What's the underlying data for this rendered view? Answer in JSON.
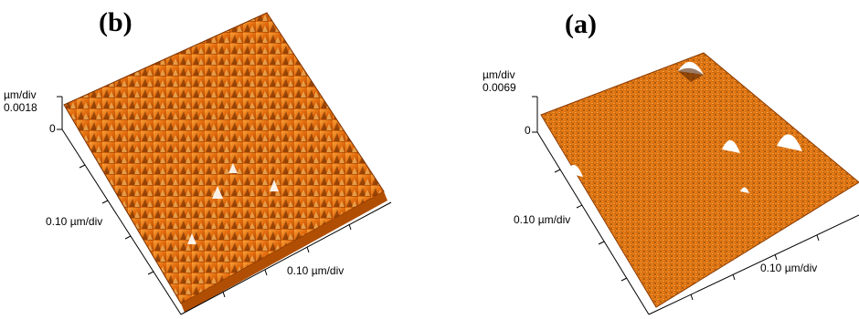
{
  "panels": {
    "left": {
      "label": "(b)",
      "z_unit": "µm/div",
      "z_max": "0.0018",
      "z_zero": "0",
      "y_axis_label": "0.10 µm/div",
      "x_axis_label": "0.10 µm/div"
    },
    "right": {
      "label": "(a)",
      "z_unit": "µm/div",
      "z_max": "0.0069",
      "z_zero": "0",
      "y_axis_label": "0.10 µm/div",
      "x_axis_label": "0.10 µm/div"
    }
  },
  "colors": {
    "surface_dark": "#8a3a00",
    "surface_mid": "#e06a0a",
    "surface_light": "#f7a63a",
    "peak_highlight": "#ffffff"
  }
}
